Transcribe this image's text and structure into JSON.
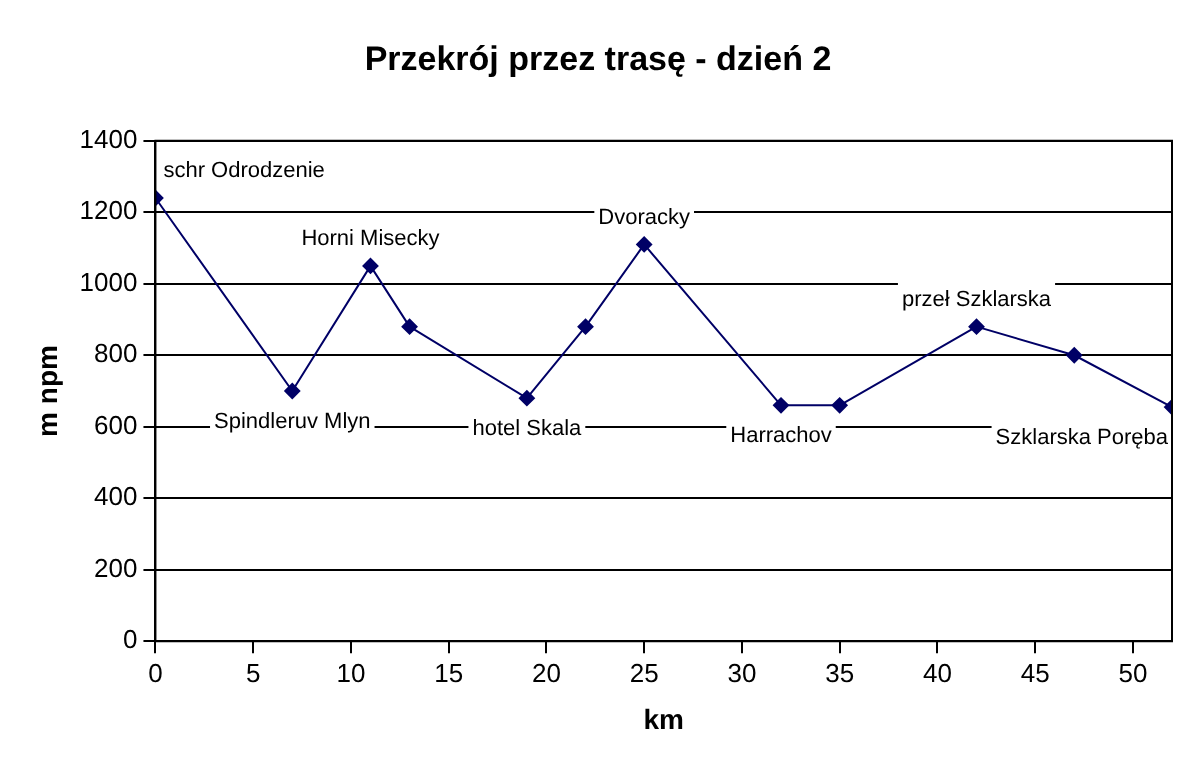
{
  "chart_data": {
    "type": "line",
    "title": "Przekrój przez trasę - dzień 2",
    "xlabel": "km",
    "ylabel": "m npm",
    "x": [
      0,
      7,
      11,
      13,
      19,
      22,
      25,
      32,
      35,
      42,
      47,
      52
    ],
    "series": [
      {
        "color": "#000066",
        "values": [
          1240,
          700,
          1050,
          880,
          680,
          880,
          1110,
          660,
          660,
          880,
          800,
          655
        ]
      }
    ],
    "xlim": [
      0,
      52
    ],
    "xticks": [
      0,
      5,
      10,
      15,
      20,
      25,
      30,
      35,
      40,
      45,
      50
    ],
    "ylim": [
      0,
      1400
    ],
    "yticks": [
      0,
      200,
      400,
      600,
      800,
      1000,
      1200,
      1400
    ],
    "grid": "y",
    "legend": false,
    "marker": "diamond",
    "line_style": "solid",
    "annotations": [
      {
        "text": "schr Odrodzenie",
        "x": 0,
        "y": 1240
      },
      {
        "text": "Spindleruv Mlyn",
        "x": 7,
        "y": 700
      },
      {
        "text": "Horni Misecky",
        "x": 11,
        "y": 1050
      },
      {
        "text": "hotel Skala",
        "x": 19,
        "y": 680
      },
      {
        "text": "Dvoracky",
        "x": 25,
        "y": 1110
      },
      {
        "text": "Harrachov",
        "x": 32,
        "y": 660
      },
      {
        "text": "przeł Szklarska",
        "x": 42,
        "y": 880
      },
      {
        "text": "Szklarska Poręba",
        "x": 52,
        "y": 655
      }
    ]
  }
}
